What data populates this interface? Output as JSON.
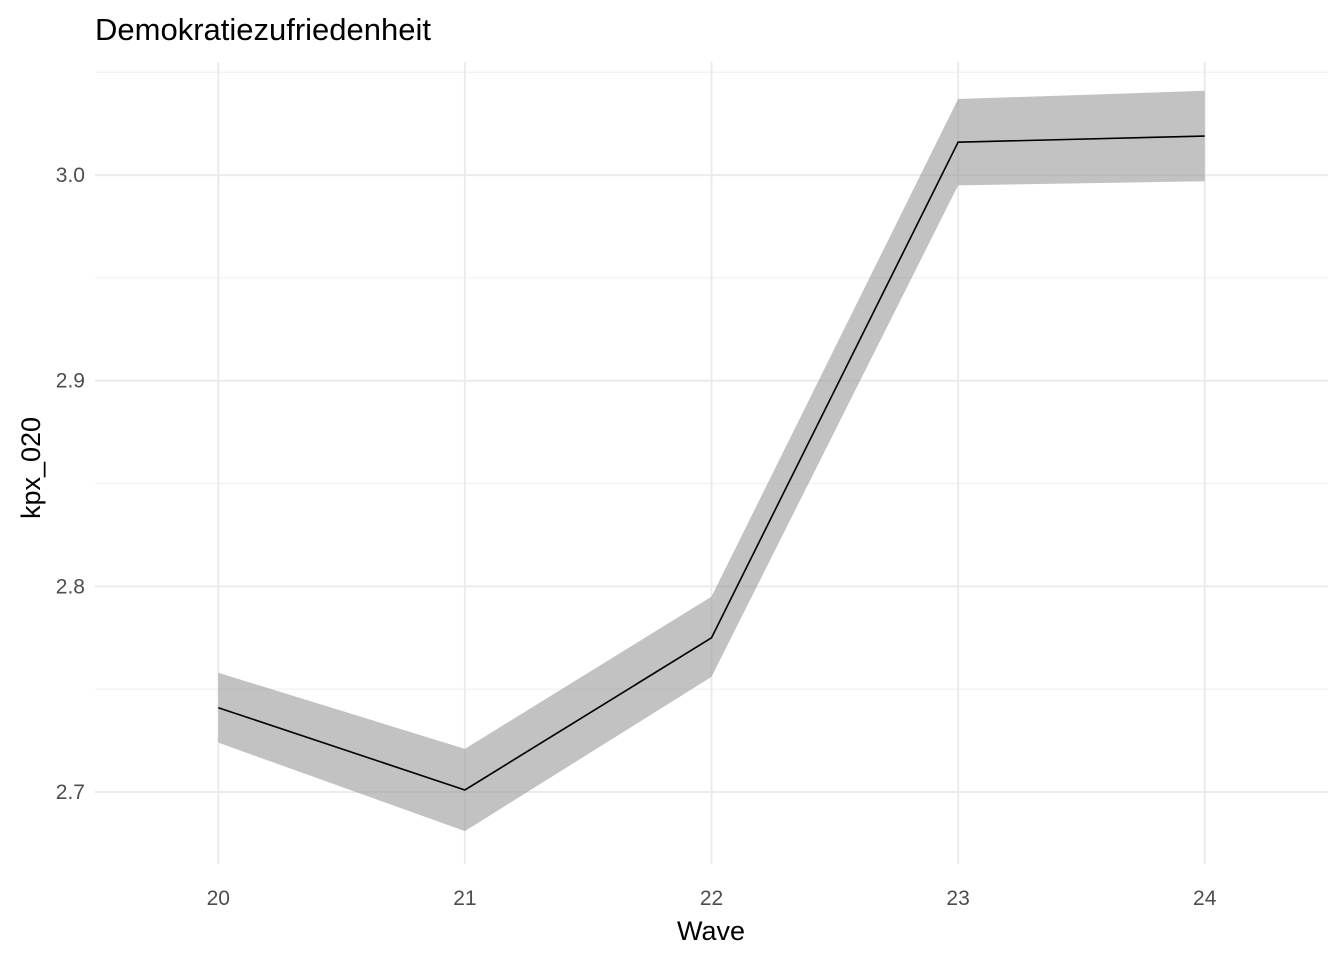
{
  "chart_data": {
    "type": "line",
    "title": "Demokratiezufriedenheit",
    "xlabel": "Wave",
    "ylabel": "kpx_020",
    "x": [
      20,
      21,
      22,
      23,
      24
    ],
    "series": [
      {
        "values": [
          2.741,
          2.701,
          2.775,
          3.016,
          3.019
        ],
        "lower": [
          2.724,
          2.681,
          2.756,
          2.995,
          2.997
        ],
        "upper": [
          2.758,
          2.721,
          2.795,
          3.037,
          3.041
        ]
      }
    ],
    "xlim": [
      19.5,
      24.5
    ],
    "ylim": [
      2.665,
      3.055
    ],
    "xticks": [
      20,
      21,
      22,
      23,
      24
    ],
    "yticks": [
      2.7,
      2.8,
      2.9,
      3.0
    ],
    "ytick_labels": [
      "2.7",
      "2.8",
      "2.9",
      "3.0"
    ],
    "grid": true,
    "colors": {
      "line": "#000000",
      "ribbon": "#999999"
    }
  }
}
